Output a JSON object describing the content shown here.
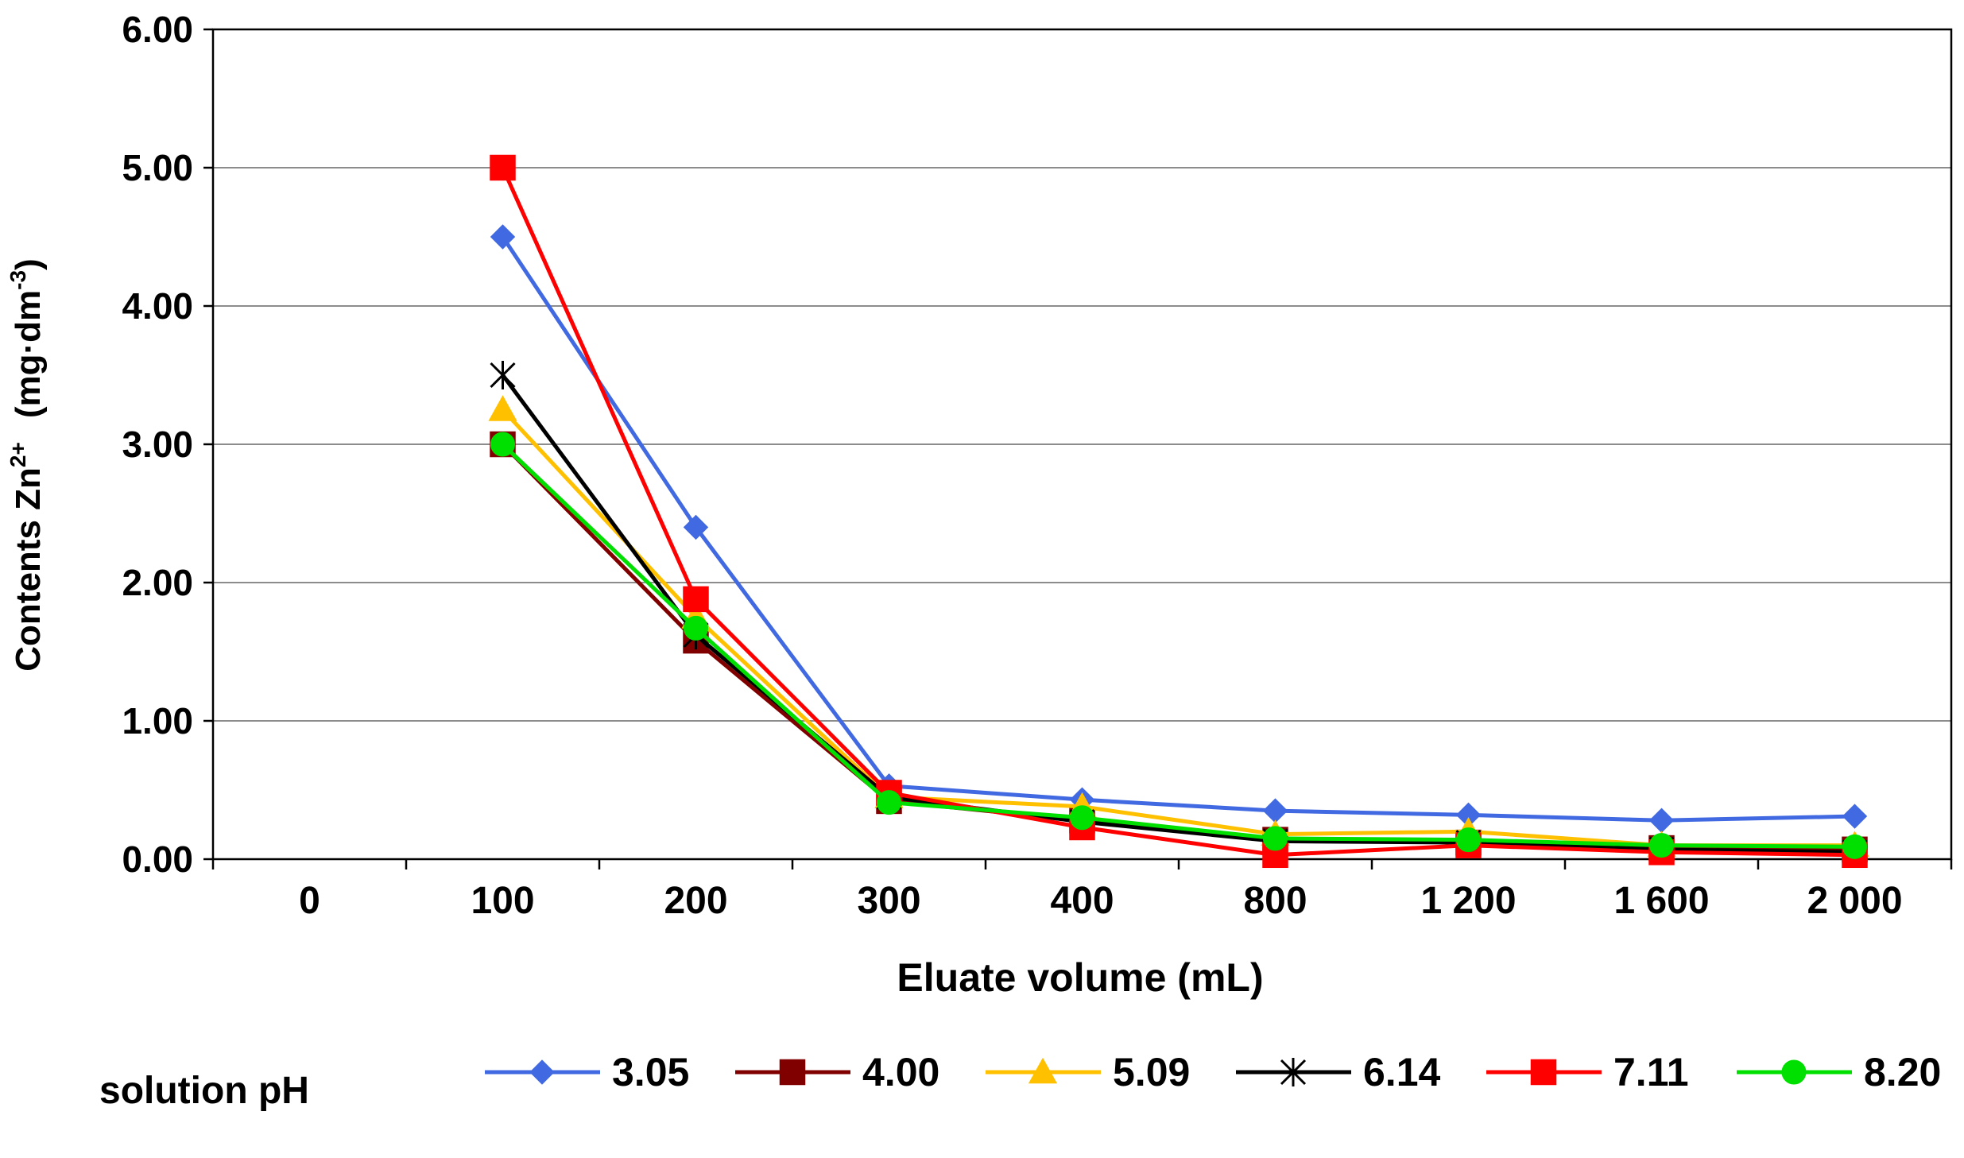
{
  "chart_data": {
    "type": "line",
    "title": "",
    "xlabel": "Eluate volume (mL)",
    "ylabel": "Contents Zn2+ (mg·dm-3)",
    "ylabel_parts": {
      "main": "Contents Zn",
      "ion_sup": "2+",
      "unit_open": "(mg·dm",
      "unit_sup": "-3",
      "unit_close": ")"
    },
    "categories": [
      "0",
      "100",
      "200",
      "300",
      "400",
      "800",
      "1 200",
      "1 600",
      "2 000"
    ],
    "ylim": [
      0,
      6
    ],
    "yticks": [
      "0.00",
      "1.00",
      "2.00",
      "3.00",
      "4.00",
      "5.00",
      "6.00"
    ],
    "grid": true,
    "legend_title": "solution pH",
    "legend_position": "bottom",
    "series": [
      {
        "name": "3.05",
        "color": "#4169E1",
        "marker": "diamond",
        "values": [
          null,
          4.5,
          2.4,
          0.53,
          0.43,
          0.35,
          0.32,
          0.28,
          0.31
        ]
      },
      {
        "name": "4.00",
        "color": "#800000",
        "marker": "square",
        "values": [
          null,
          3.0,
          1.58,
          0.42,
          0.28,
          0.14,
          0.12,
          0.08,
          0.07
        ]
      },
      {
        "name": "5.09",
        "color": "#FFC000",
        "marker": "triangle",
        "values": [
          null,
          3.25,
          1.75,
          0.45,
          0.38,
          0.18,
          0.2,
          0.1,
          0.1
        ]
      },
      {
        "name": "6.14",
        "color": "#000000",
        "marker": "star",
        "values": [
          null,
          3.5,
          1.62,
          0.45,
          0.27,
          0.13,
          0.12,
          0.07,
          0.05
        ]
      },
      {
        "name": "7.11",
        "color": "#FF0000",
        "marker": "square",
        "values": [
          null,
          5.0,
          1.88,
          0.48,
          0.23,
          0.03,
          0.1,
          0.05,
          0.03
        ]
      },
      {
        "name": "8.20",
        "color": "#00E000",
        "marker": "circle",
        "values": [
          null,
          3.0,
          1.67,
          0.41,
          0.3,
          0.15,
          0.14,
          0.1,
          0.09
        ]
      }
    ]
  }
}
